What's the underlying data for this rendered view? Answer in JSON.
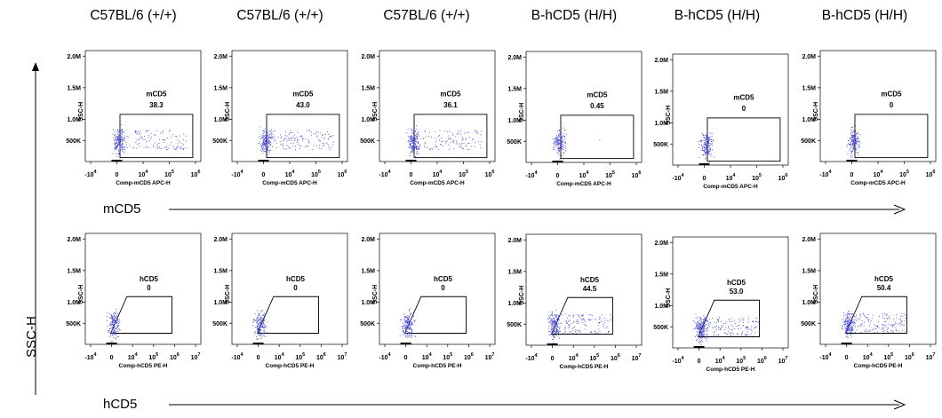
{
  "figure": {
    "column_titles": [
      "C57BL/6 (+/+)",
      "C57BL/6 (+/+)",
      "C57BL/6 (+/+)",
      "B-hCD5 (H/H)",
      "B-hCD5 (H/H)",
      "B-hCD5 (H/H)"
    ],
    "row_axis_labels": [
      "mCD5",
      "hCD5"
    ],
    "y_axis_label": "SSC-H"
  },
  "chart_data": [
    {
      "type": "scatter",
      "row": "mCD5",
      "sample": "C57BL/6 (+/+)",
      "gate_label": "mCD5",
      "gate_value": "38.3",
      "xlabel": "Comp-mCD5 APC-H",
      "ylabel": "SSC-H",
      "x_ticks": [
        "-10^4",
        "0",
        "10^4",
        "10^5",
        "10^6"
      ],
      "y_ticks": [
        "500K",
        "1.0M",
        "1.5M",
        "2.0M"
      ]
    },
    {
      "type": "scatter",
      "row": "mCD5",
      "sample": "C57BL/6 (+/+)",
      "gate_label": "mCD5",
      "gate_value": "43.0",
      "xlabel": "Comp-mCD5 APC-H",
      "ylabel": "SSC-H",
      "x_ticks": [
        "-10^4",
        "0",
        "10^4",
        "10^5",
        "10^6"
      ],
      "y_ticks": [
        "500K",
        "1.0M",
        "1.5M",
        "2.0M"
      ]
    },
    {
      "type": "scatter",
      "row": "mCD5",
      "sample": "C57BL/6 (+/+)",
      "gate_label": "mCD5",
      "gate_value": "36.1",
      "xlabel": "Comp-mCD5 APC-H",
      "ylabel": "SSC-H",
      "x_ticks": [
        "-10^4",
        "0",
        "10^4",
        "10^5",
        "10^6"
      ],
      "y_ticks": [
        "500K",
        "1.0M",
        "1.5M",
        "2.0M"
      ]
    },
    {
      "type": "scatter",
      "row": "mCD5",
      "sample": "B-hCD5 (H/H)",
      "gate_label": "mCD5",
      "gate_value": "0.45",
      "xlabel": "Comp-mCD5 APC-H",
      "ylabel": "SSC-H",
      "x_ticks": [
        "-10^4",
        "0",
        "10^4",
        "10^5",
        "10^6"
      ],
      "y_ticks": [
        "500K",
        "1.0M",
        "1.5M",
        "2.0M"
      ]
    },
    {
      "type": "scatter",
      "row": "mCD5",
      "sample": "B-hCD5 (H/H)",
      "gate_label": "mCD5",
      "gate_value": "0",
      "xlabel": "Comp-mCD5 APC-H",
      "ylabel": "SSC-H",
      "x_ticks": [
        "-10^4",
        "0",
        "10^4",
        "10^5",
        "10^6"
      ],
      "y_ticks": [
        "500K",
        "1.0M",
        "1.5M",
        "2.0M"
      ]
    },
    {
      "type": "scatter",
      "row": "mCD5",
      "sample": "B-hCD5 (H/H)",
      "gate_label": "mCD5",
      "gate_value": "0",
      "xlabel": "Comp-mCD5 APC-H",
      "ylabel": "SSC-H",
      "x_ticks": [
        "-10^4",
        "0",
        "10^4",
        "10^5",
        "10^6"
      ],
      "y_ticks": [
        "500K",
        "1.0M",
        "1.5M",
        "2.0M"
      ]
    },
    {
      "type": "scatter",
      "row": "hCD5",
      "sample": "C57BL/6 (+/+)",
      "gate_label": "hCD5",
      "gate_value": "0",
      "xlabel": "Comp-hCD5 PE-H",
      "ylabel": "SSC-H",
      "x_ticks": [
        "-10^4",
        "0",
        "10^4",
        "10^5",
        "10^6",
        "10^7"
      ],
      "y_ticks": [
        "500K",
        "1.0M",
        "1.5M",
        "2.0M"
      ]
    },
    {
      "type": "scatter",
      "row": "hCD5",
      "sample": "C57BL/6 (+/+)",
      "gate_label": "hCD5",
      "gate_value": "0",
      "xlabel": "Comp-hCD5 PE-H",
      "ylabel": "SSC-H",
      "x_ticks": [
        "-10^4",
        "0",
        "10^4",
        "10^5",
        "10^6",
        "10^7"
      ],
      "y_ticks": [
        "500K",
        "1.0M",
        "1.5M",
        "2.0M"
      ]
    },
    {
      "type": "scatter",
      "row": "hCD5",
      "sample": "C57BL/6 (+/+)",
      "gate_label": "hCD5",
      "gate_value": "0",
      "xlabel": "Comp-hCD5 PE-H",
      "ylabel": "SSC-H",
      "x_ticks": [
        "-10^4",
        "0",
        "10^4",
        "10^5",
        "10^6",
        "10^7"
      ],
      "y_ticks": [
        "500K",
        "1.0M",
        "1.5M",
        "2.0M"
      ]
    },
    {
      "type": "scatter",
      "row": "hCD5",
      "sample": "B-hCD5 (H/H)",
      "gate_label": "hCD5",
      "gate_value": "44.5",
      "xlabel": "Comp-hCD5 PE-H",
      "ylabel": "SSC-H",
      "x_ticks": [
        "-10^4",
        "0",
        "10^4",
        "10^5",
        "10^6",
        "10^7"
      ],
      "y_ticks": [
        "500K",
        "1.0M",
        "1.5M",
        "2.0M"
      ]
    },
    {
      "type": "scatter",
      "row": "hCD5",
      "sample": "B-hCD5 (H/H)",
      "gate_label": "hCD5",
      "gate_value": "53.0",
      "xlabel": "Comp-hCD5 PE-H",
      "ylabel": "SSC-H",
      "x_ticks": [
        "-10^4",
        "0",
        "10^4",
        "10^5",
        "10^6",
        "10^7"
      ],
      "y_ticks": [
        "500K",
        "1.0M",
        "1.5M",
        "2.0M"
      ]
    },
    {
      "type": "scatter",
      "row": "hCD5",
      "sample": "B-hCD5 (H/H)",
      "gate_label": "hCD5",
      "gate_value": "50.4",
      "xlabel": "Comp-hCD5 PE-H",
      "ylabel": "SSC-H",
      "x_ticks": [
        "-10^4",
        "0",
        "10^4",
        "10^5",
        "10^6",
        "10^7"
      ],
      "y_ticks": [
        "500K",
        "1.0M",
        "1.5M",
        "2.0M"
      ]
    }
  ],
  "colors": {
    "dots": "#3c3cd2",
    "frame": "#000000"
  }
}
